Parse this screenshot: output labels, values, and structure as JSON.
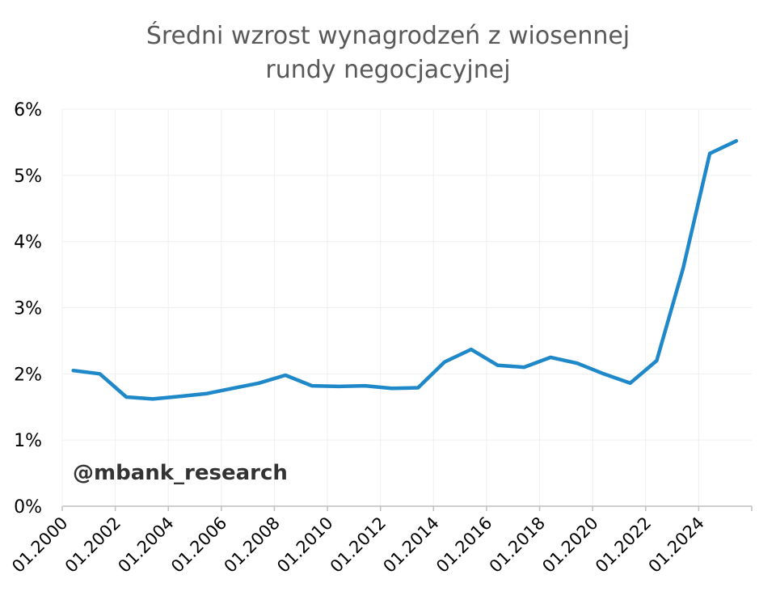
{
  "chart_data": {
    "type": "line",
    "title_lines": [
      "Średni wzrost wynagrodzeń z wiosennej",
      "rundy negocjacyjnej"
    ],
    "xlabel": "",
    "ylabel": "",
    "y_ticks": [
      "0%",
      "1%",
      "2%",
      "3%",
      "4%",
      "5%",
      "6%"
    ],
    "ylim": [
      0,
      6
    ],
    "x_ticks": [
      "01.2000",
      "01.2002",
      "01.2004",
      "01.2006",
      "01.2008",
      "01.2010",
      "01.2012",
      "01.2014",
      "01.2016",
      "01.2018",
      "01.2020",
      "01.2022",
      "01.2024"
    ],
    "xlim": [
      "01.2000",
      "01.2026"
    ],
    "grid": true,
    "series": [
      {
        "color": "#1E88C9",
        "x": [
          "06.2000",
          "06.2001",
          "06.2002",
          "06.2003",
          "06.2004",
          "06.2005",
          "06.2006",
          "06.2007",
          "06.2008",
          "06.2009",
          "06.2010",
          "06.2011",
          "06.2012",
          "06.2013",
          "06.2014",
          "06.2015",
          "06.2016",
          "06.2017",
          "06.2018",
          "06.2019",
          "06.2020",
          "06.2021",
          "06.2022",
          "06.2023",
          "06.2024",
          "06.2025"
        ],
        "values": [
          2.05,
          2.0,
          1.65,
          1.62,
          1.66,
          1.7,
          1.78,
          1.86,
          1.98,
          1.82,
          1.81,
          1.82,
          1.78,
          1.79,
          2.18,
          2.37,
          2.13,
          2.1,
          2.25,
          2.16,
          2.0,
          1.86,
          2.2,
          3.6,
          5.33,
          5.52
        ]
      }
    ]
  },
  "watermark": "@mbank_research"
}
